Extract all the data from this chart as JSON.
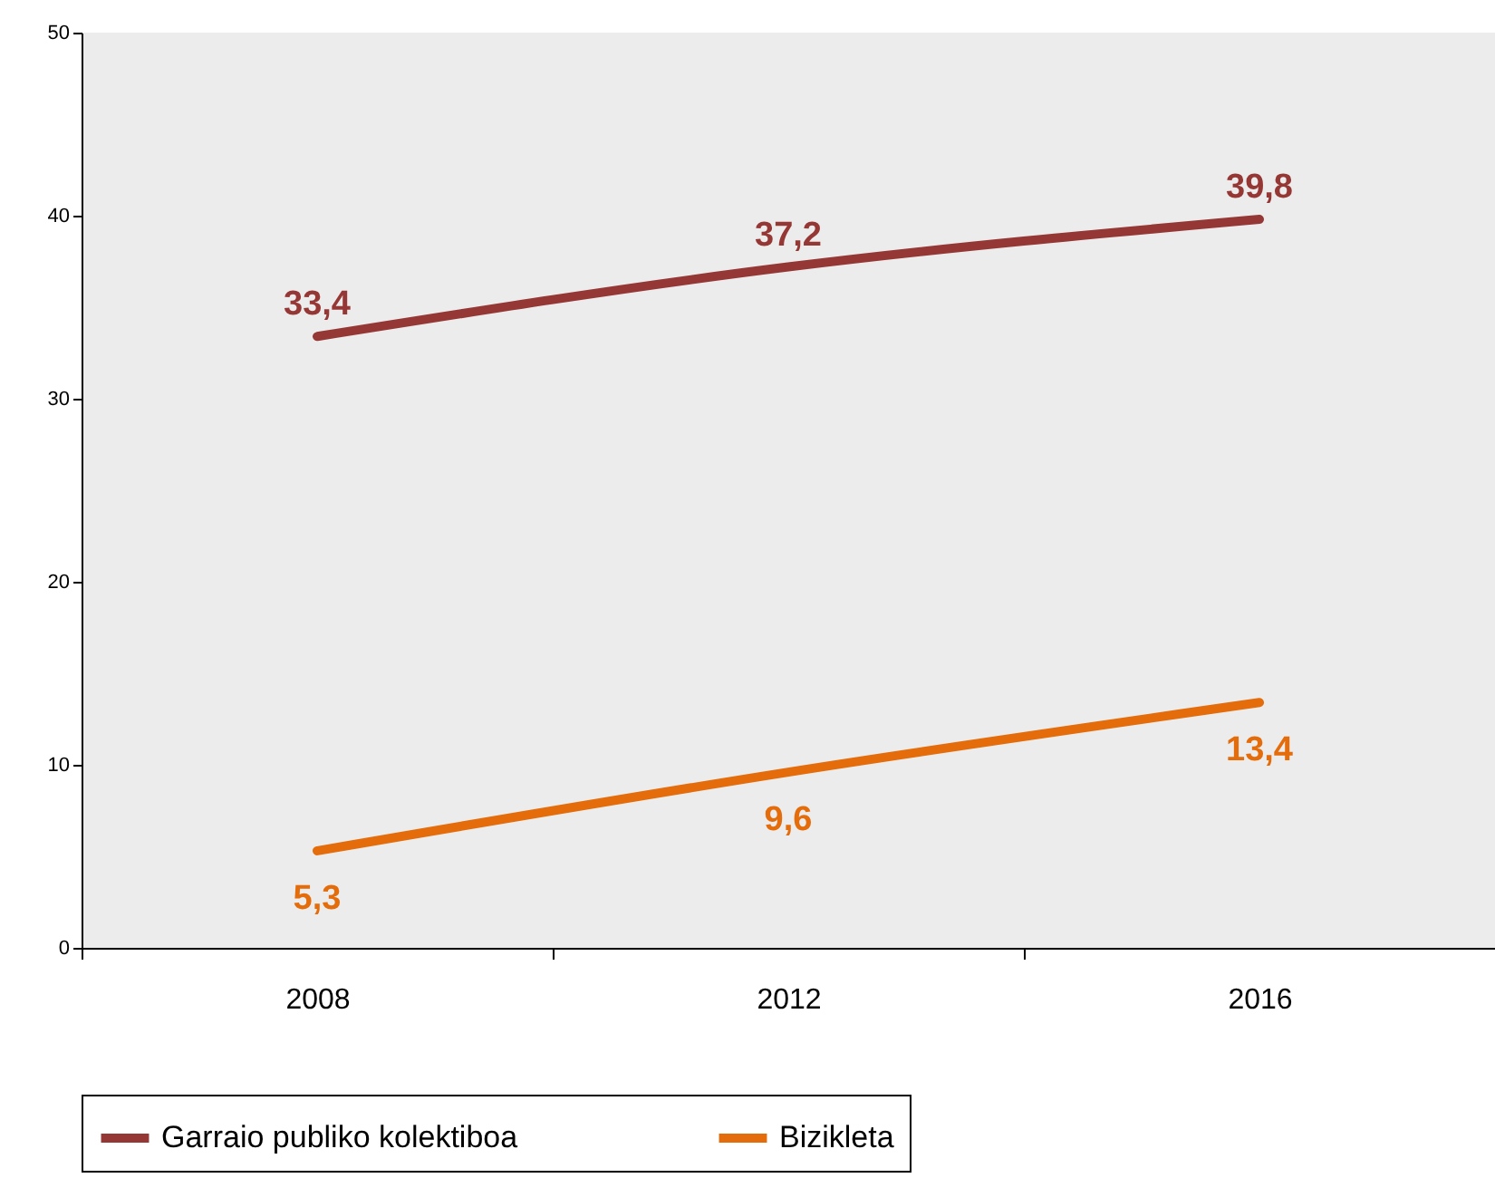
{
  "chart_data": {
    "type": "line",
    "categories": [
      "2008",
      "2012",
      "2016"
    ],
    "series": [
      {
        "name": "Garraio publiko kolektiboa",
        "color": "#953735",
        "values": [
          33.4,
          37.2,
          39.8
        ],
        "value_labels": [
          "33,4",
          "37,2",
          "39,8"
        ]
      },
      {
        "name": "Bizikleta",
        "color": "#e46c0a",
        "values": [
          5.3,
          9.6,
          13.4
        ],
        "value_labels": [
          "5,3",
          "9,6",
          "13,4"
        ]
      }
    ],
    "ylim": [
      0,
      50
    ],
    "yticks": [
      0,
      10,
      20,
      30,
      40,
      50
    ],
    "grid": false,
    "legend": "bottom",
    "marker": "none",
    "line_style": "solid"
  }
}
